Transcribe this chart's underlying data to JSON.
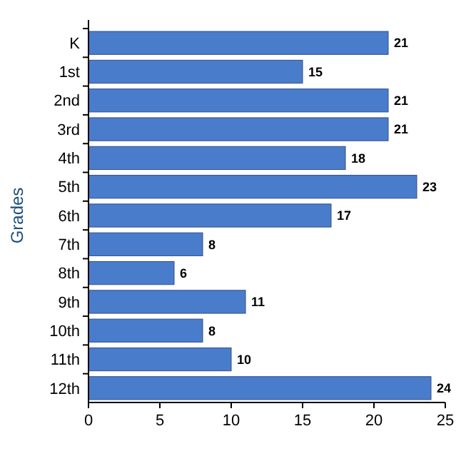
{
  "chart_data": {
    "type": "bar",
    "orientation": "horizontal",
    "ylabel": "Grades",
    "categories": [
      "K",
      "1st",
      "2nd",
      "3rd",
      "4th",
      "5th",
      "6th",
      "7th",
      "8th",
      "9th",
      "10th",
      "11th",
      "12th"
    ],
    "values": [
      21,
      15,
      21,
      21,
      18,
      23,
      17,
      8,
      6,
      11,
      8,
      10,
      24
    ],
    "color": "#4a7ccc",
    "xlim": [
      0,
      25
    ],
    "xticks": [
      0,
      5,
      10,
      15,
      20,
      25
    ],
    "data_labels": true
  }
}
